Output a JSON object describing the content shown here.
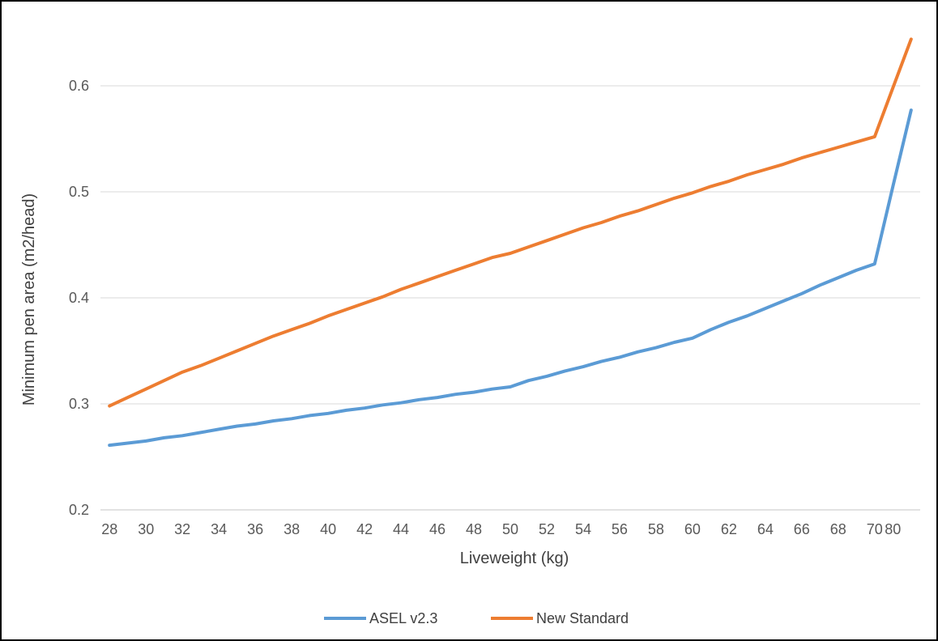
{
  "chart_data": {
    "type": "line",
    "title": "",
    "xlabel": "Liveweight (kg)",
    "ylabel": "Minimum pen area (m2/head)",
    "ylim": [
      0.2,
      0.6
    ],
    "yticks": [
      "0.2",
      "0.3",
      "0.4",
      "0.5",
      "0.6"
    ],
    "grid": true,
    "legend_position": "bottom",
    "categories": [
      "28",
      "29",
      "30",
      "31",
      "32",
      "33",
      "34",
      "35",
      "36",
      "37",
      "38",
      "39",
      "40",
      "41",
      "42",
      "43",
      "44",
      "45",
      "46",
      "47",
      "48",
      "49",
      "50",
      "51",
      "52",
      "53",
      "54",
      "55",
      "56",
      "57",
      "58",
      "59",
      "60",
      "61",
      "62",
      "63",
      "64",
      "65",
      "66",
      "67",
      "68",
      "69",
      "70",
      "80",
      "90"
    ],
    "tick_labels": [
      "28",
      "30",
      "32",
      "34",
      "36",
      "38",
      "40",
      "42",
      "44",
      "46",
      "48",
      "50",
      "52",
      "54",
      "56",
      "58",
      "60",
      "62",
      "64",
      "66",
      "68",
      "70",
      "80"
    ],
    "series": [
      {
        "name": "ASEL v2.3",
        "color": "#5b9bd5",
        "values": [
          0.261,
          0.263,
          0.265,
          0.268,
          0.27,
          0.273,
          0.276,
          0.279,
          0.281,
          0.284,
          0.286,
          0.289,
          0.291,
          0.294,
          0.296,
          0.299,
          0.301,
          0.304,
          0.306,
          0.309,
          0.311,
          0.314,
          0.316,
          0.322,
          0.326,
          0.331,
          0.335,
          0.34,
          0.344,
          0.349,
          0.353,
          0.358,
          0.362,
          0.37,
          0.377,
          0.383,
          0.39,
          0.397,
          0.404,
          0.412,
          0.419,
          0.426,
          0.432,
          0.505,
          0.577
        ]
      },
      {
        "name": "New Standard",
        "color": "#ed7d31",
        "values": [
          0.298,
          0.306,
          0.314,
          0.322,
          0.33,
          0.336,
          0.343,
          0.35,
          0.357,
          0.364,
          0.37,
          0.376,
          0.383,
          0.389,
          0.395,
          0.401,
          0.408,
          0.414,
          0.42,
          0.426,
          0.432,
          0.438,
          0.442,
          0.448,
          0.454,
          0.46,
          0.466,
          0.471,
          0.477,
          0.482,
          0.488,
          0.494,
          0.499,
          0.505,
          0.51,
          0.516,
          0.521,
          0.526,
          0.532,
          0.537,
          0.542,
          0.547,
          0.552,
          0.598,
          0.644
        ]
      }
    ]
  }
}
